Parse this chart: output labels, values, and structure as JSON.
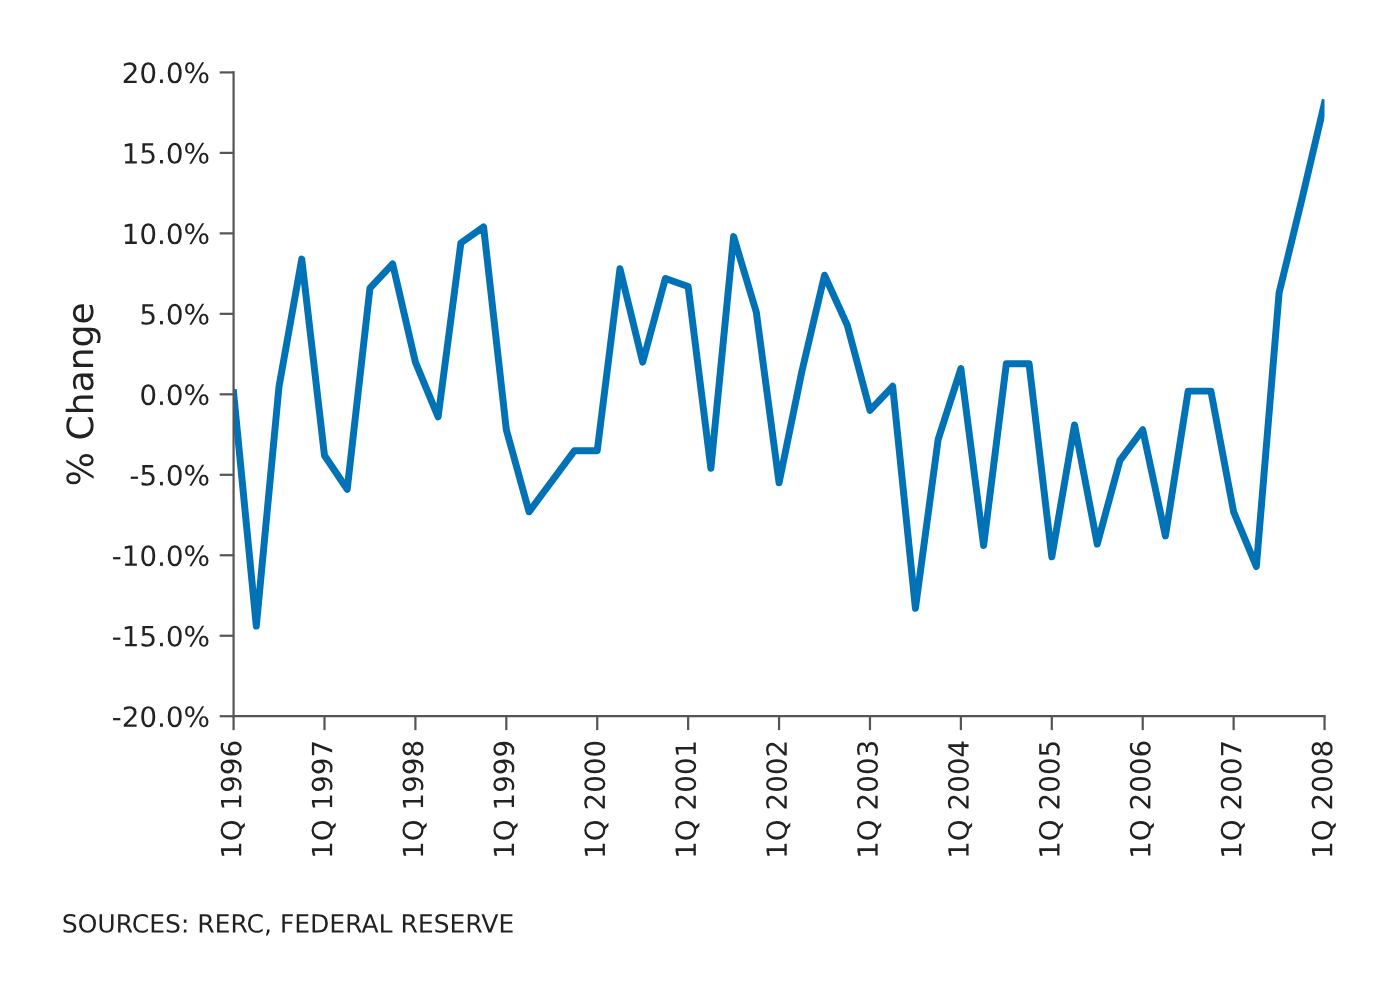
{
  "chart_data": {
    "type": "line",
    "ylabel": "% Change",
    "categories": [
      "1Q 1996",
      null,
      null,
      null,
      "1Q 1997",
      null,
      null,
      null,
      "1Q 1998",
      null,
      null,
      null,
      "1Q 1999",
      null,
      null,
      null,
      "1Q 2000",
      null,
      null,
      null,
      "1Q 2001",
      null,
      null,
      null,
      "1Q 2002",
      null,
      null,
      null,
      "1Q 2003",
      null,
      null,
      null,
      "1Q 2004",
      null,
      null,
      null,
      "1Q 2005",
      null,
      null,
      null,
      "1Q 2006",
      null,
      null,
      null,
      "1Q 2007",
      null,
      null,
      null,
      "1Q 2008"
    ],
    "series": [
      {
        "color": "#0072b5",
        "values": [
          0.1,
          -14.4,
          0.5,
          8.4,
          -3.8,
          -5.9,
          6.6,
          8.1,
          2.0,
          -1.4,
          9.4,
          10.4,
          -2.2,
          -7.3,
          -5.4,
          -3.5,
          -3.5,
          7.8,
          2.0,
          7.2,
          6.7,
          -4.6,
          9.8,
          5.1,
          -5.5,
          1.4,
          7.4,
          4.3,
          -1.0,
          0.5,
          -13.3,
          -2.8,
          1.6,
          -9.4,
          1.9,
          1.9,
          -10.1,
          -1.9,
          -9.3,
          -4.1,
          -2.2,
          -8.8,
          0.2,
          0.2,
          -7.3,
          -10.7,
          6.3,
          12.1,
          18.1
        ]
      }
    ],
    "ylim": [
      -20,
      20
    ],
    "yticks": [
      {
        "value": -20,
        "label": "-20.0%"
      },
      {
        "value": -15,
        "label": "-15.0%"
      },
      {
        "value": -10,
        "label": "-10.0%"
      },
      {
        "value": -5,
        "label": "-5.0%"
      },
      {
        "value": 0,
        "label": "0.0%"
      },
      {
        "value": 5,
        "label": "5.0%"
      },
      {
        "value": 10,
        "label": "10.0%"
      },
      {
        "value": 15,
        "label": "15.0%"
      },
      {
        "value": 20,
        "label": "20.0%"
      }
    ],
    "grid": false,
    "marker": "none",
    "line_style": "solid",
    "annotations": [
      "SOURCES: RERC, FEDERAL RESERVE"
    ]
  }
}
